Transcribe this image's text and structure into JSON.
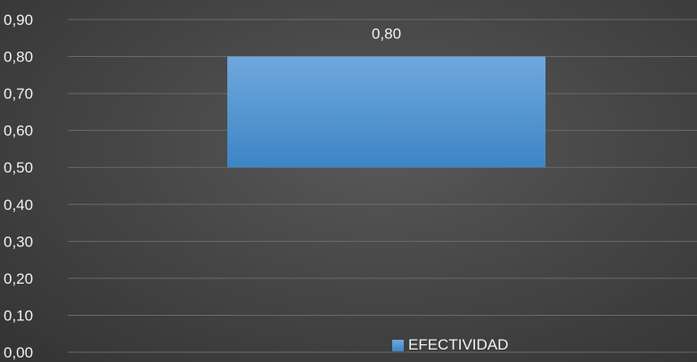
{
  "chart_data": {
    "type": "bar",
    "categories": [
      ""
    ],
    "series": [
      {
        "name": "EFECTIVIDAD",
        "base": 0.5,
        "values": [
          0.8
        ],
        "color": "#4a90d9"
      }
    ],
    "data_labels": [
      "0,80"
    ],
    "yticks": [
      "0,00",
      "0,10",
      "0,20",
      "0,30",
      "0,40",
      "0,50",
      "0,60",
      "0,70",
      "0,80",
      "0,90"
    ],
    "ylim": [
      0,
      0.9
    ],
    "grid": true,
    "legend_position": "bottom",
    "title": "",
    "xlabel": "",
    "ylabel": ""
  },
  "colors": {
    "background": "#474747",
    "gridline": "#6a6a6a",
    "text": "#f2f2f2",
    "bar_top": "#6fa8dc",
    "bar_bottom": "#3d85c6"
  }
}
